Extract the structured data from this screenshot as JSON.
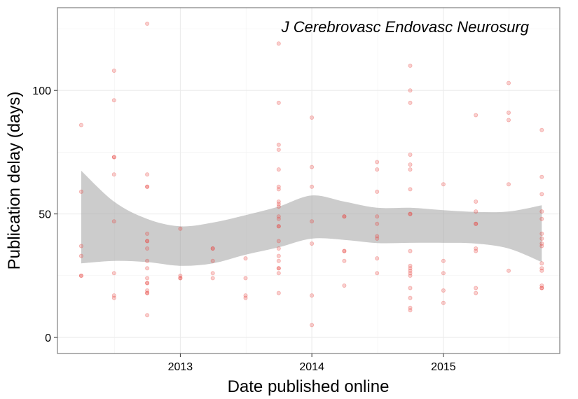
{
  "chart_data": {
    "type": "scatter",
    "annotation": "J Cerebrovasc Endovasc Neurosurg",
    "xlabel": "Date published online",
    "ylabel": "Publication delay (days)",
    "x_ticks": [
      {
        "date": "2013-01-01",
        "label": "2013"
      },
      {
        "date": "2014-01-01",
        "label": "2014"
      },
      {
        "date": "2015-01-01",
        "label": "2015"
      }
    ],
    "y_ticks": [
      {
        "value": 0,
        "label": "0"
      },
      {
        "value": 50,
        "label": "50"
      },
      {
        "value": 100,
        "label": "100"
      }
    ],
    "xlim": [
      "2012-01-26",
      "2015-11-20"
    ],
    "ylim": [
      -6.5,
      133.5
    ],
    "grid": true,
    "theme": "bw",
    "point_color": "#e8413c",
    "point_alpha": 0.25,
    "band_color": "#999999",
    "series": [
      {
        "type": "scatter",
        "points": [
          [
            "2012-04-01",
            86
          ],
          [
            "2012-04-01",
            59
          ],
          [
            "2012-04-01",
            37
          ],
          [
            "2012-04-01",
            33
          ],
          [
            "2012-04-01",
            25
          ],
          [
            "2012-04-01",
            25
          ],
          [
            "2012-07-01",
            108
          ],
          [
            "2012-07-01",
            96
          ],
          [
            "2012-07-01",
            73
          ],
          [
            "2012-07-01",
            73
          ],
          [
            "2012-07-01",
            66
          ],
          [
            "2012-07-01",
            47
          ],
          [
            "2012-07-01",
            26
          ],
          [
            "2012-07-01",
            17
          ],
          [
            "2012-07-01",
            16
          ],
          [
            "2012-10-01",
            127
          ],
          [
            "2012-10-01",
            66
          ],
          [
            "2012-10-01",
            61
          ],
          [
            "2012-10-01",
            61
          ],
          [
            "2012-10-01",
            42
          ],
          [
            "2012-10-01",
            39
          ],
          [
            "2012-10-01",
            39
          ],
          [
            "2012-10-01",
            36
          ],
          [
            "2012-10-01",
            31
          ],
          [
            "2012-10-01",
            28
          ],
          [
            "2012-10-01",
            24
          ],
          [
            "2012-10-01",
            22
          ],
          [
            "2012-10-01",
            22
          ],
          [
            "2012-10-01",
            19
          ],
          [
            "2012-10-01",
            18
          ],
          [
            "2012-10-01",
            18
          ],
          [
            "2012-10-01",
            9
          ],
          [
            "2013-01-01",
            44
          ],
          [
            "2013-01-01",
            25
          ],
          [
            "2013-01-01",
            24
          ],
          [
            "2013-01-01",
            24
          ],
          [
            "2013-04-01",
            36
          ],
          [
            "2013-04-01",
            36
          ],
          [
            "2013-04-01",
            31
          ],
          [
            "2013-04-01",
            26
          ],
          [
            "2013-04-01",
            24
          ],
          [
            "2013-07-01",
            32
          ],
          [
            "2013-07-01",
            24
          ],
          [
            "2013-07-01",
            17
          ],
          [
            "2013-07-01",
            16
          ],
          [
            "2013-10-01",
            119
          ],
          [
            "2013-10-01",
            95
          ],
          [
            "2013-10-01",
            78
          ],
          [
            "2013-10-01",
            76
          ],
          [
            "2013-10-01",
            68
          ],
          [
            "2013-10-01",
            61
          ],
          [
            "2013-10-01",
            60
          ],
          [
            "2013-10-01",
            55
          ],
          [
            "2013-10-01",
            54
          ],
          [
            "2013-10-01",
            53
          ],
          [
            "2013-10-01",
            49
          ],
          [
            "2013-10-01",
            48
          ],
          [
            "2013-10-01",
            45
          ],
          [
            "2013-10-01",
            45
          ],
          [
            "2013-10-01",
            39
          ],
          [
            "2013-10-01",
            36
          ],
          [
            "2013-10-01",
            33
          ],
          [
            "2013-10-01",
            31
          ],
          [
            "2013-10-01",
            28
          ],
          [
            "2013-10-01",
            28
          ],
          [
            "2013-10-01",
            26
          ],
          [
            "2013-10-01",
            18
          ],
          [
            "2014-01-01",
            89
          ],
          [
            "2014-01-01",
            69
          ],
          [
            "2014-01-01",
            61
          ],
          [
            "2014-01-01",
            47
          ],
          [
            "2014-01-01",
            38
          ],
          [
            "2014-01-01",
            17
          ],
          [
            "2014-01-01",
            5
          ],
          [
            "2014-04-01",
            49
          ],
          [
            "2014-04-01",
            49
          ],
          [
            "2014-04-01",
            35
          ],
          [
            "2014-04-01",
            35
          ],
          [
            "2014-04-01",
            31
          ],
          [
            "2014-04-01",
            21
          ],
          [
            "2014-07-01",
            71
          ],
          [
            "2014-07-01",
            68
          ],
          [
            "2014-07-01",
            59
          ],
          [
            "2014-07-01",
            49
          ],
          [
            "2014-07-01",
            46
          ],
          [
            "2014-07-01",
            41
          ],
          [
            "2014-07-01",
            40
          ],
          [
            "2014-07-01",
            32
          ],
          [
            "2014-07-01",
            26
          ],
          [
            "2014-10-01",
            110
          ],
          [
            "2014-10-01",
            100
          ],
          [
            "2014-10-01",
            95
          ],
          [
            "2014-10-01",
            74
          ],
          [
            "2014-10-01",
            70
          ],
          [
            "2014-10-01",
            68
          ],
          [
            "2014-10-01",
            60
          ],
          [
            "2014-10-01",
            50
          ],
          [
            "2014-10-01",
            50
          ],
          [
            "2014-10-01",
            35
          ],
          [
            "2014-10-01",
            29
          ],
          [
            "2014-10-01",
            28
          ],
          [
            "2014-10-01",
            27
          ],
          [
            "2014-10-01",
            26
          ],
          [
            "2014-10-01",
            25
          ],
          [
            "2014-10-01",
            20
          ],
          [
            "2014-10-01",
            16
          ],
          [
            "2014-10-01",
            12
          ],
          [
            "2014-10-01",
            11
          ],
          [
            "2015-01-01",
            62
          ],
          [
            "2015-01-01",
            31
          ],
          [
            "2015-01-01",
            26
          ],
          [
            "2015-01-01",
            19
          ],
          [
            "2015-01-01",
            14
          ],
          [
            "2015-04-01",
            90
          ],
          [
            "2015-04-01",
            55
          ],
          [
            "2015-04-01",
            51
          ],
          [
            "2015-04-01",
            46
          ],
          [
            "2015-04-01",
            46
          ],
          [
            "2015-04-01",
            36
          ],
          [
            "2015-04-01",
            35
          ],
          [
            "2015-04-01",
            20
          ],
          [
            "2015-04-01",
            18
          ],
          [
            "2015-07-01",
            103
          ],
          [
            "2015-07-01",
            91
          ],
          [
            "2015-07-01",
            88
          ],
          [
            "2015-07-01",
            62
          ],
          [
            "2015-07-01",
            27
          ],
          [
            "2015-10-01",
            84
          ],
          [
            "2015-10-01",
            65
          ],
          [
            "2015-10-01",
            58
          ],
          [
            "2015-10-01",
            51
          ],
          [
            "2015-10-01",
            48
          ],
          [
            "2015-10-01",
            42
          ],
          [
            "2015-10-01",
            40
          ],
          [
            "2015-10-01",
            38
          ],
          [
            "2015-10-01",
            37
          ],
          [
            "2015-10-01",
            30
          ],
          [
            "2015-10-01",
            28
          ],
          [
            "2015-10-01",
            27
          ],
          [
            "2015-10-01",
            21
          ],
          [
            "2015-10-01",
            20
          ],
          [
            "2015-10-01",
            20
          ]
        ]
      },
      {
        "type": "smooth",
        "x": [
          "2012-04-01",
          "2012-07-01",
          "2012-10-01",
          "2013-01-01",
          "2013-04-01",
          "2013-07-01",
          "2013-10-01",
          "2014-01-01",
          "2014-04-01",
          "2014-07-01",
          "2014-10-01",
          "2015-01-01",
          "2015-04-01",
          "2015-07-01",
          "2015-10-01"
        ],
        "upper": [
          67.5,
          55,
          48,
          45,
          46.5,
          49.5,
          53,
          57.5,
          55,
          52.5,
          52.5,
          51.5,
          50.8,
          51,
          53.5
        ],
        "lower": [
          30,
          31,
          30.5,
          29,
          30,
          33.5,
          36.5,
          40,
          39.5,
          38.2,
          38.3,
          38.3,
          38,
          36,
          30.5
        ]
      }
    ]
  }
}
